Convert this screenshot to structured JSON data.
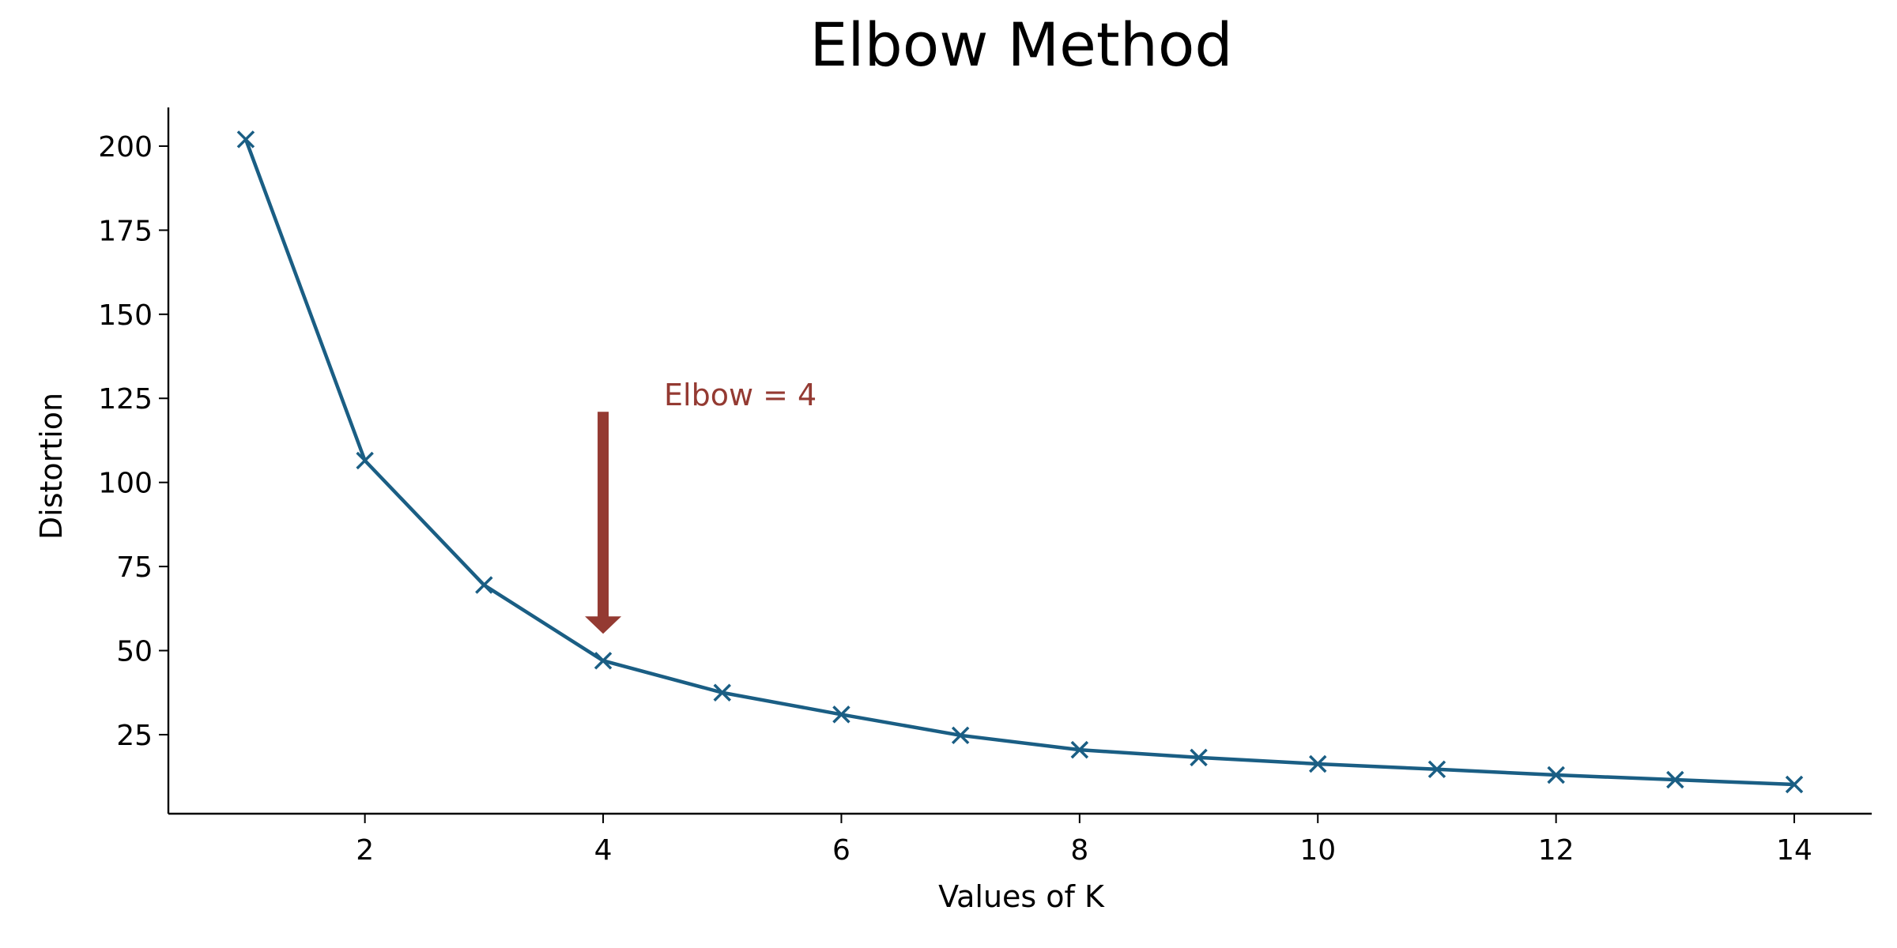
{
  "chart_data": {
    "type": "line",
    "title": "Elbow Method",
    "xlabel": "Values of K",
    "ylabel": "Distortion",
    "x": [
      1,
      2,
      3,
      4,
      5,
      6,
      7,
      8,
      9,
      10,
      11,
      12,
      13,
      14
    ],
    "series": [
      {
        "values": [
          202,
          106.5,
          69.5,
          47,
          37.5,
          31,
          24.8,
          20.5,
          18.2,
          16.3,
          14.7,
          13,
          11.6,
          10.2
        ],
        "color": "#1a5e84",
        "marker": "x"
      }
    ],
    "xlim": [
      0.35,
      14.65
    ],
    "ylim": [
      1.5,
      211.5
    ],
    "xticks": [
      2,
      4,
      6,
      8,
      10,
      12,
      14
    ],
    "yticks": [
      25,
      50,
      75,
      100,
      125,
      150,
      175,
      200
    ],
    "grid": false,
    "annotation": {
      "text": "Elbow = 4",
      "x": 4,
      "y": 47,
      "arrow_color": "#943a32"
    }
  }
}
